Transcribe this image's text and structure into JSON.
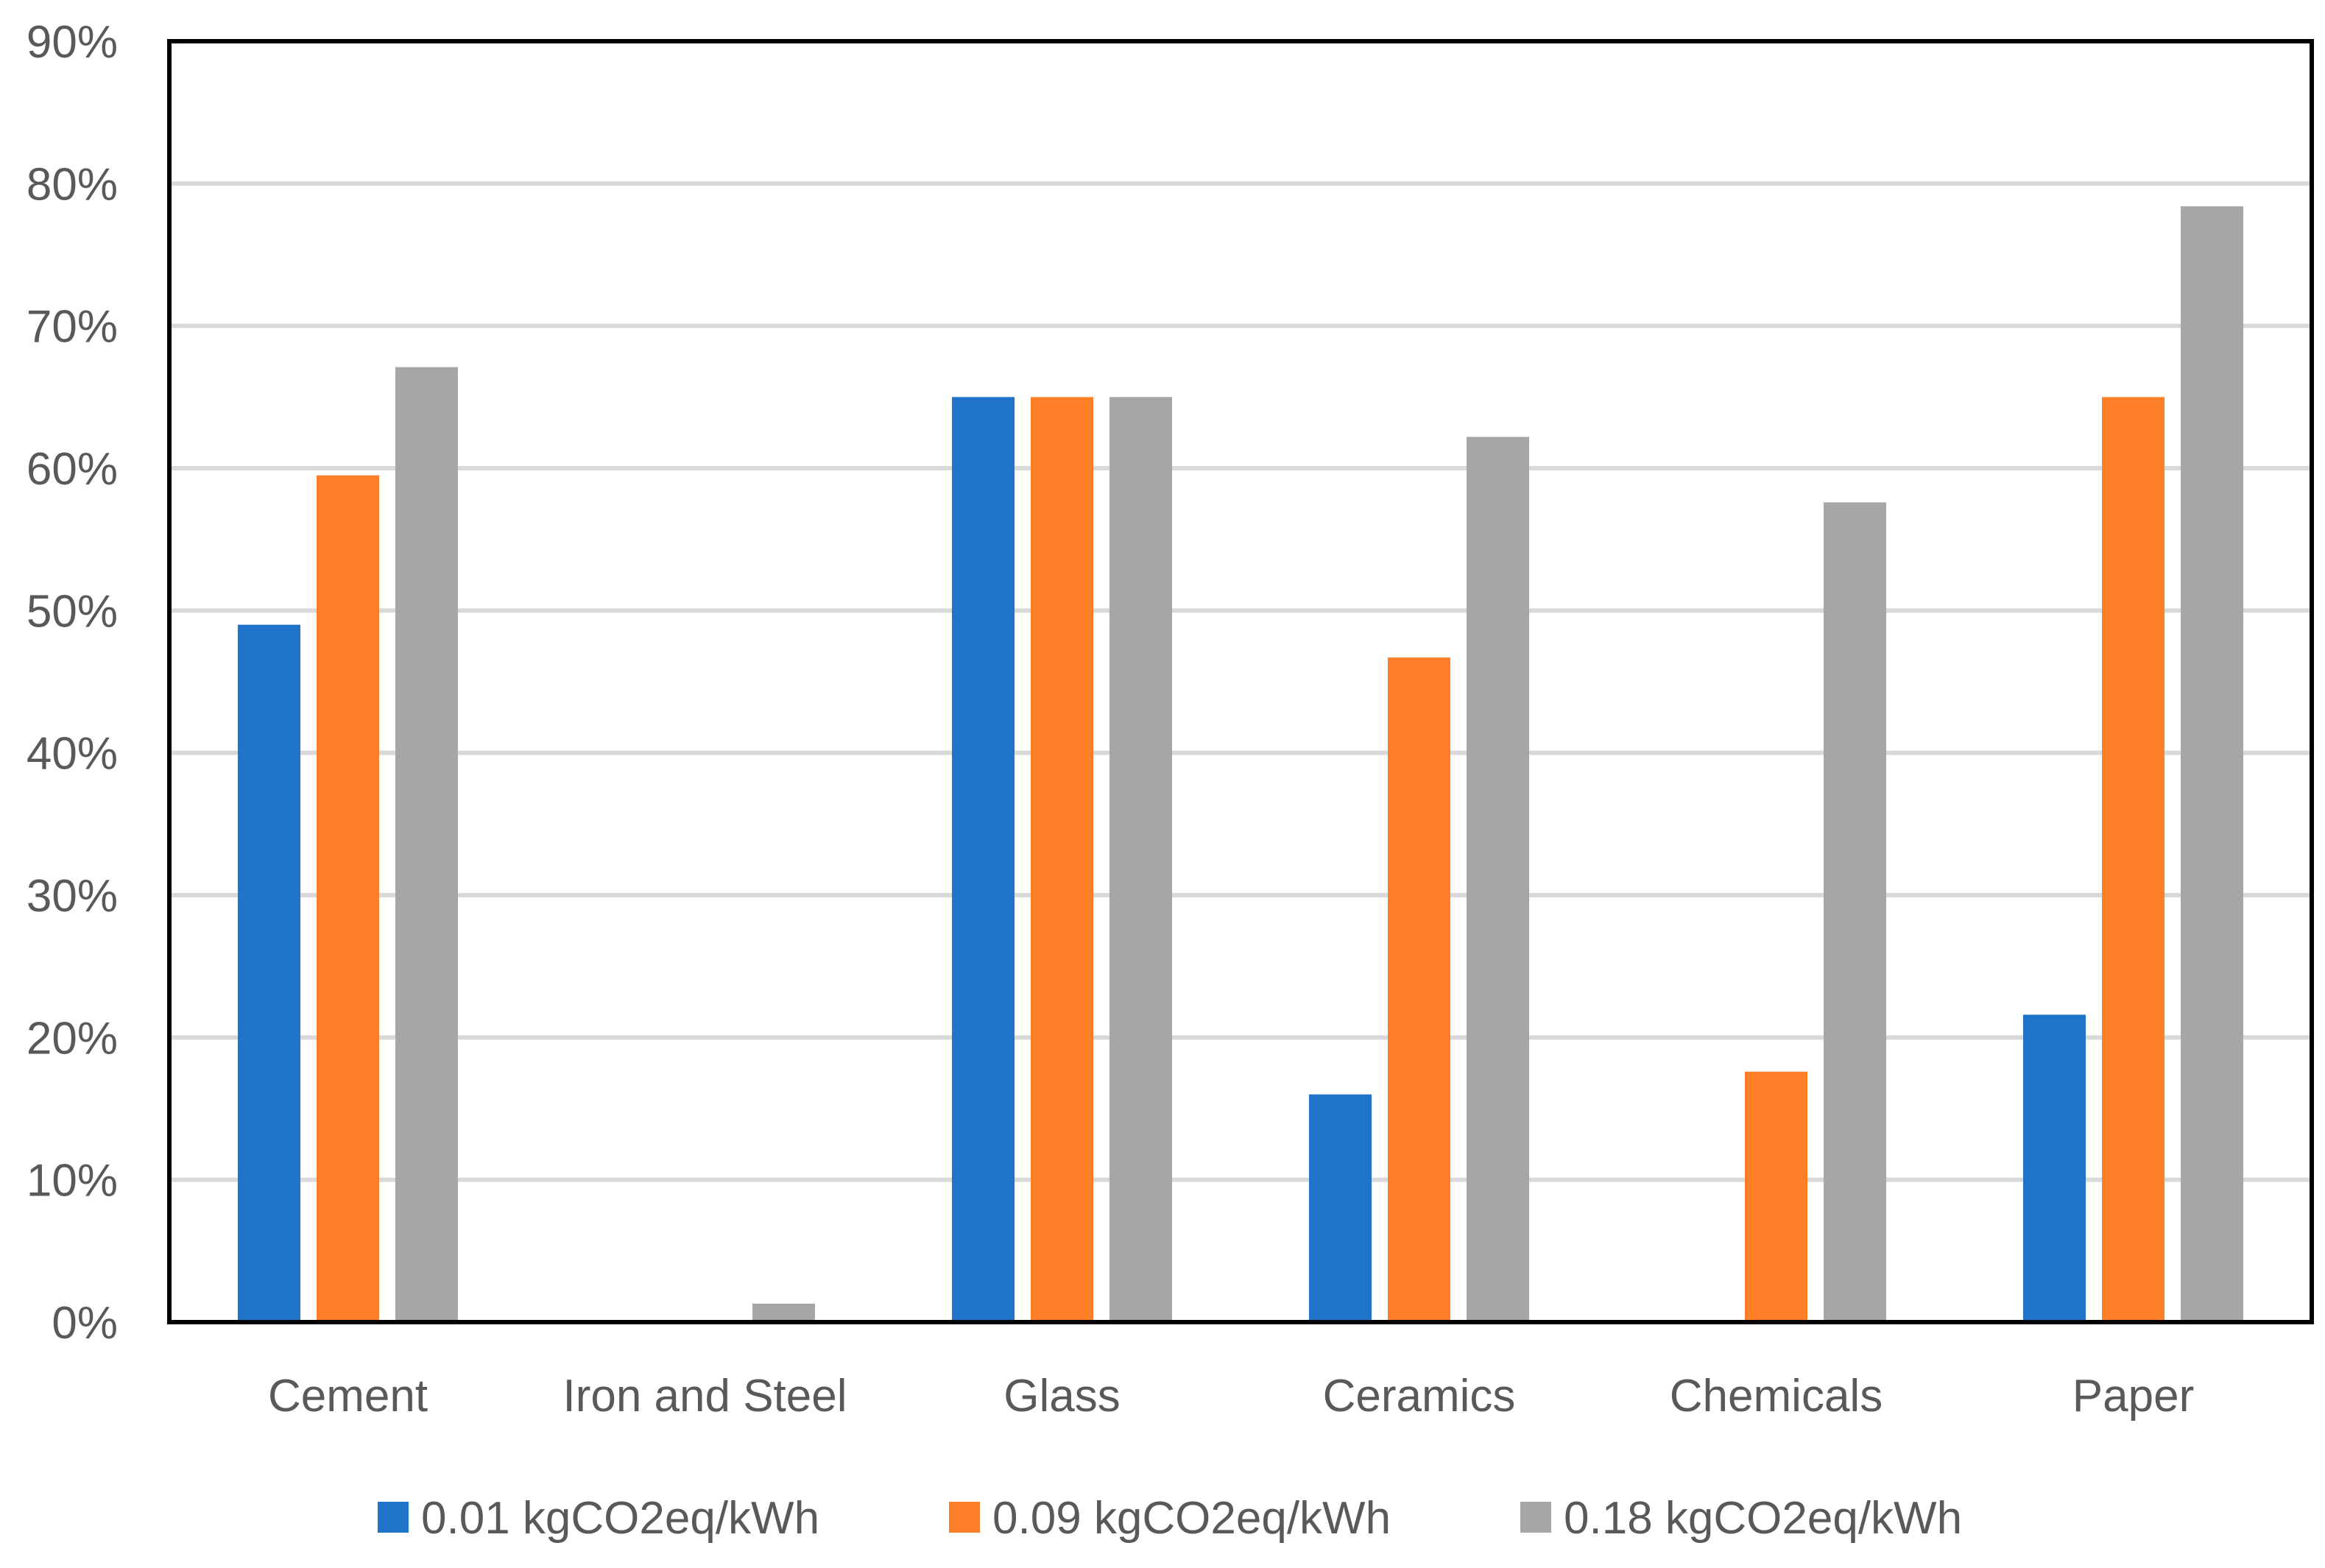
{
  "chart_data": {
    "type": "bar",
    "title": "",
    "xlabel": "",
    "ylabel": "",
    "categories": [
      "Cement",
      "Iron and Steel",
      "Glass",
      "Ceramics",
      "Chemicals",
      "Paper"
    ],
    "series": [
      {
        "name": "0.01 kgCO2eq/kWh",
        "color": "#1f73c8",
        "values": [
          49.0,
          0,
          65.0,
          16.0,
          0,
          21.6
        ]
      },
      {
        "name": "0.09 kgCO2eq/kWh",
        "color": "#fd7f27",
        "values": [
          59.5,
          0,
          65.0,
          46.7,
          17.6,
          65.0
        ]
      },
      {
        "name": "0.18 kgCO2eq/kWh",
        "color": "#a6a6a6",
        "values": [
          67.1,
          1.3,
          65.0,
          62.2,
          57.6,
          78.4
        ]
      }
    ],
    "ylim": [
      0,
      90
    ],
    "y_ticks": [
      "0%",
      "10%",
      "20%",
      "30%",
      "40%",
      "50%",
      "60%",
      "70%",
      "80%",
      "90%"
    ],
    "grid": true,
    "legend_position": "bottom"
  }
}
